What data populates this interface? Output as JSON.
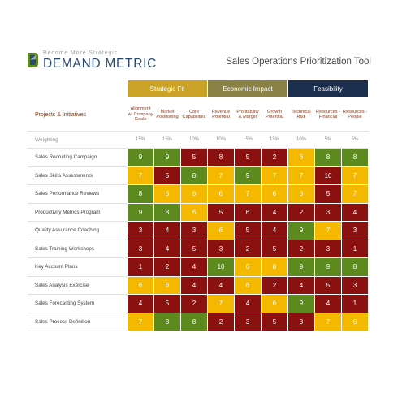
{
  "brand": {
    "tagline": "Become More Strategic",
    "name": "DEMAND METRIC"
  },
  "title": "Sales Operations Prioritization Tool",
  "colors": {
    "strategic": "#c9a227",
    "economic": "#8a8146",
    "feasibility": "#1c2f4f",
    "green": "#5c8a1e",
    "red": "#8b1010",
    "yellow": "#f4b800"
  },
  "groups": [
    {
      "label": "Strategic Fit",
      "span": 3,
      "color": "#c9a227"
    },
    {
      "label": "Economic Impact",
      "span": 3,
      "color": "#8a8146"
    },
    {
      "label": "Feasibility",
      "span": 3,
      "color": "#1c2f4f"
    }
  ],
  "project_header": "Projects & Initiatives",
  "criteria": [
    "Alignment w/ Company Goals",
    "Market Positioning",
    "Core Capabilities",
    "Revenue Potential",
    "Profitability & Margin",
    "Growth Potential",
    "Technical Risk",
    "Resources - Financial",
    "Resources - People"
  ],
  "weighting_label": "Weighting",
  "weights": [
    "15%",
    "15%",
    "10%",
    "10%",
    "15%",
    "15%",
    "10%",
    "5%",
    "5%"
  ],
  "rows": [
    {
      "name": "Sales Recruiting Campaign",
      "values": [
        9,
        9,
        5,
        8,
        5,
        2,
        6,
        8,
        8
      ],
      "colors": [
        "g",
        "g",
        "r",
        "r",
        "r",
        "r",
        "y",
        "g",
        "g"
      ]
    },
    {
      "name": "Sales Skills Assessments",
      "values": [
        7,
        5,
        8,
        7,
        9,
        7,
        7,
        10,
        7
      ],
      "colors": [
        "y",
        "r",
        "g",
        "y",
        "g",
        "y",
        "y",
        "r",
        "y"
      ]
    },
    {
      "name": "Sales Performance Reviews",
      "values": [
        8,
        6,
        6,
        6,
        7,
        6,
        6,
        5,
        7
      ],
      "colors": [
        "g",
        "y",
        "y",
        "y",
        "y",
        "y",
        "y",
        "r",
        "y"
      ]
    },
    {
      "name": "Productivity Metrics Program",
      "values": [
        9,
        8,
        6,
        5,
        6,
        4,
        2,
        3,
        4
      ],
      "colors": [
        "g",
        "g",
        "y",
        "r",
        "r",
        "r",
        "r",
        "r",
        "r"
      ]
    },
    {
      "name": "Quality Assurance Coaching",
      "values": [
        3,
        4,
        3,
        6,
        5,
        4,
        9,
        7,
        3
      ],
      "colors": [
        "r",
        "r",
        "r",
        "y",
        "r",
        "r",
        "g",
        "y",
        "r"
      ]
    },
    {
      "name": "Sales Training Workshops",
      "values": [
        3,
        4,
        5,
        3,
        2,
        5,
        2,
        3,
        1
      ],
      "colors": [
        "r",
        "r",
        "r",
        "r",
        "r",
        "r",
        "r",
        "r",
        "r"
      ]
    },
    {
      "name": "Key Account Plans",
      "values": [
        1,
        2,
        4,
        10,
        6,
        8,
        9,
        9,
        8
      ],
      "colors": [
        "r",
        "r",
        "r",
        "g",
        "y",
        "y",
        "g",
        "g",
        "g"
      ]
    },
    {
      "name": "Sales Analysis Exercise",
      "values": [
        6,
        6,
        4,
        4,
        6,
        2,
        4,
        5,
        3
      ],
      "colors": [
        "y",
        "y",
        "r",
        "r",
        "y",
        "r",
        "r",
        "r",
        "r"
      ]
    },
    {
      "name": "Sales Forecasting System",
      "values": [
        4,
        5,
        2,
        7,
        4,
        6,
        9,
        4,
        1
      ],
      "colors": [
        "r",
        "r",
        "r",
        "y",
        "r",
        "y",
        "g",
        "r",
        "r"
      ]
    },
    {
      "name": "Sales Process Definition",
      "values": [
        7,
        8,
        8,
        2,
        3,
        5,
        3,
        7,
        6
      ],
      "colors": [
        "y",
        "g",
        "g",
        "r",
        "r",
        "r",
        "r",
        "y",
        "y"
      ]
    }
  ]
}
